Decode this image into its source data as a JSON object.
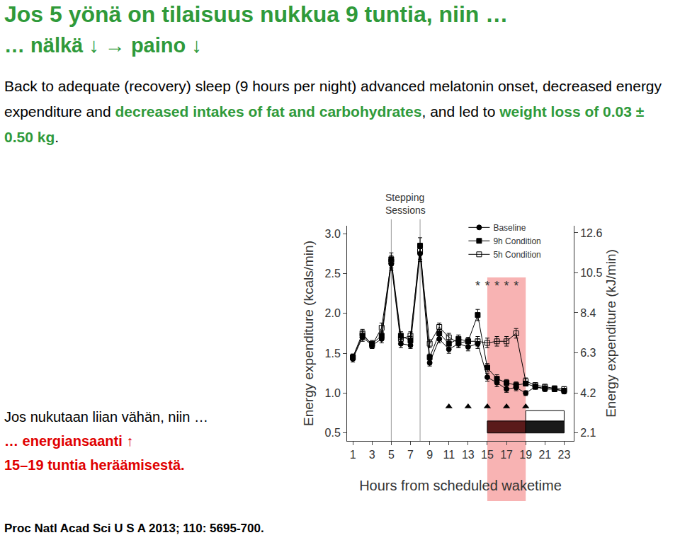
{
  "slide": {
    "colors": {
      "title": "#2f9a3a",
      "text": "#000000",
      "emphasis": "#2f9a3a",
      "alert": "#e00000"
    },
    "title": "Jos 5 yönä on tilaisuus nukkua 9 tuntia, niin …",
    "subtitle": "… nälkä ↓ → paino ↓",
    "paragraph": [
      {
        "text": "Back to adequate (recovery) sleep (9 hours per night) advanced melatonin onset, decreased energy expenditure and ",
        "emphasis": false
      },
      {
        "text": "decreased intakes of fat and carbohydrates",
        "emphasis": true
      },
      {
        "text": ", and led to ",
        "emphasis": false
      },
      {
        "text": "weight loss of 0.03 ± 0.50 kg",
        "emphasis": true
      },
      {
        "text": ".",
        "emphasis": false
      }
    ],
    "note": [
      {
        "text": "Jos nukutaan liian vähän, niin …",
        "emphasis": false
      },
      {
        "text": "… energiansaanti ↑",
        "emphasis": true
      },
      {
        "text": "15–19 tuntia heräämisestä.",
        "emphasis": true
      }
    ],
    "citation": "Proc Natl Acad Sci U S A 2013; 110: 5695-700."
  },
  "chart_data": {
    "type": "line",
    "xlabel": "Hours from scheduled waketime",
    "ylabel": "Energy expenditure (kcals/min)",
    "y2label": "Energy expenditure (kJ/min)",
    "x": [
      1,
      2,
      3,
      4,
      5,
      6,
      7,
      8,
      9,
      10,
      11,
      12,
      13,
      14,
      15,
      16,
      17,
      18,
      19,
      20,
      21,
      22,
      23
    ],
    "xlim": [
      0.4,
      24
    ],
    "xticks": [
      1,
      3,
      5,
      7,
      9,
      11,
      13,
      15,
      17,
      19,
      21,
      23
    ],
    "ylim": [
      0.4,
      3.1
    ],
    "yticks": [
      0.5,
      {
        "value": 1,
        "label": "1.0"
      },
      1.5,
      {
        "value": 2,
        "label": "2.0"
      },
      2.5,
      {
        "value": 3,
        "label": "3.0"
      }
    ],
    "y2lim": [
      1.674,
      12.97
    ],
    "y2ticks": [
      2.1,
      4.2,
      6.3,
      8.4,
      10.5,
      12.6
    ],
    "grid": false,
    "legend": "top",
    "series": [
      {
        "name": "Baseline",
        "color": "#000000",
        "marker": "circle",
        "values": [
          1.43,
          1.7,
          1.6,
          1.68,
          2.62,
          1.62,
          1.6,
          2.75,
          1.38,
          1.68,
          1.55,
          1.62,
          1.58,
          1.62,
          1.2,
          1.13,
          1.05,
          1.07,
          1.0,
          1.08,
          1.05,
          1.05,
          1.02
        ],
        "errors": [
          0.04,
          0.05,
          0.04,
          0.05,
          0.08,
          0.05,
          0.04,
          0.1,
          0.04,
          0.05,
          0.05,
          0.05,
          0.05,
          0.06,
          0.05,
          0.05,
          0.04,
          0.04,
          0.03,
          0.03,
          0.03,
          0.03,
          0.03
        ]
      },
      {
        "name": "9h Condition",
        "color": "#000000",
        "marker": "square",
        "values": [
          1.45,
          1.72,
          1.62,
          1.72,
          2.68,
          1.72,
          1.66,
          2.85,
          1.45,
          1.75,
          1.62,
          1.68,
          1.65,
          1.98,
          1.32,
          1.18,
          1.13,
          1.1,
          1.12,
          1.08,
          1.06,
          1.05,
          1.03
        ],
        "errors": [
          0.04,
          0.05,
          0.04,
          0.05,
          0.08,
          0.05,
          0.05,
          0.1,
          0.04,
          0.05,
          0.05,
          0.05,
          0.05,
          0.07,
          0.05,
          0.05,
          0.04,
          0.04,
          0.03,
          0.03,
          0.03,
          0.03,
          0.03
        ]
      },
      {
        "name": "5h Condition",
        "color": "#000000",
        "marker": "square-open",
        "values": [
          1.45,
          1.75,
          1.6,
          1.82,
          2.65,
          1.68,
          1.72,
          2.78,
          1.62,
          1.83,
          1.7,
          1.63,
          1.65,
          1.65,
          1.63,
          1.65,
          1.65,
          1.75,
          1.15,
          1.1,
          1.08,
          1.06,
          1.05
        ],
        "errors": [
          0.04,
          0.05,
          0.04,
          0.06,
          0.08,
          0.05,
          0.05,
          0.1,
          0.05,
          0.05,
          0.05,
          0.05,
          0.05,
          0.06,
          0.06,
          0.06,
          0.06,
          0.06,
          0.04,
          0.03,
          0.03,
          0.03,
          0.03
        ]
      }
    ],
    "stepping_sessions": {
      "label": "Stepping Sessions",
      "hours": [
        5,
        8
      ],
      "color": "#999999"
    },
    "significance": {
      "label": "*",
      "x": [
        14,
        15,
        16,
        17,
        18
      ],
      "y": [
        2.33,
        2.33,
        2.33,
        2.33,
        2.33
      ],
      "color": "#333333"
    },
    "triangles": {
      "marker": "triangle-up",
      "color": "#000000",
      "x": [
        11,
        13,
        15,
        17,
        19
      ],
      "y": [
        0.83,
        0.83,
        0.83,
        0.83,
        0.83
      ]
    },
    "highlight": {
      "x0": 15,
      "x1": 19,
      "color": "#f7a6a6"
    },
    "periods": [
      {
        "x0": 15,
        "x1": 19,
        "y0": 0.5,
        "y1": 0.65,
        "color": "#5a1a1a"
      },
      {
        "x0": 19,
        "x1": 23,
        "y0": 0.5,
        "y1": 0.65,
        "color": "#1a1a1a"
      },
      {
        "x0": 19,
        "x1": 23,
        "y0": 0.65,
        "y1": 0.78,
        "color": "#ffffff"
      }
    ]
  }
}
